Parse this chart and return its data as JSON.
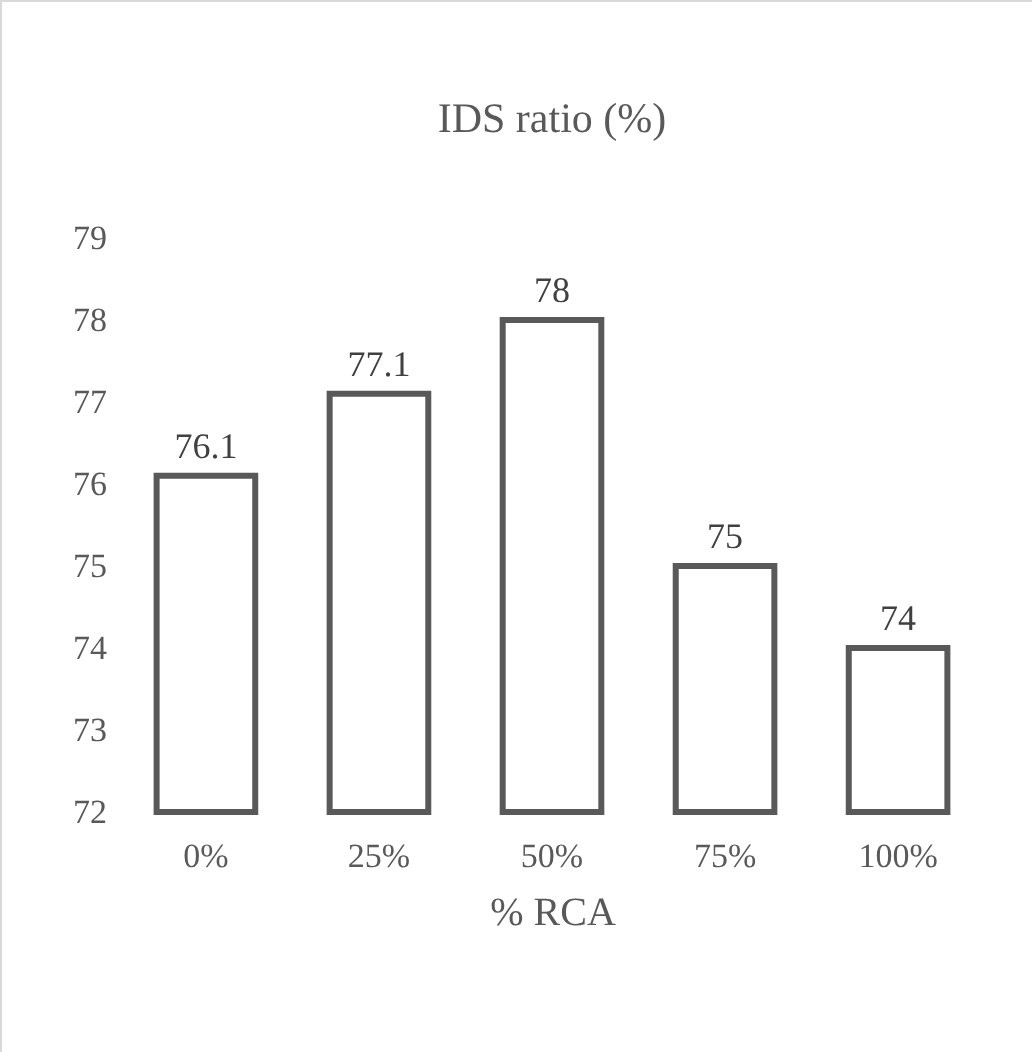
{
  "chart_data": {
    "type": "bar",
    "title": "IDS ratio (%)",
    "xlabel": "% RCA",
    "categories": [
      "0%",
      "25%",
      "50%",
      "75%",
      "100%"
    ],
    "values": [
      76.1,
      77.1,
      78,
      75,
      74
    ],
    "color": "#595959",
    "ylim": [
      72,
      79
    ],
    "yticks": [
      72,
      73,
      74,
      75,
      76,
      77,
      78,
      79
    ],
    "grid": false,
    "data_labels": true
  }
}
